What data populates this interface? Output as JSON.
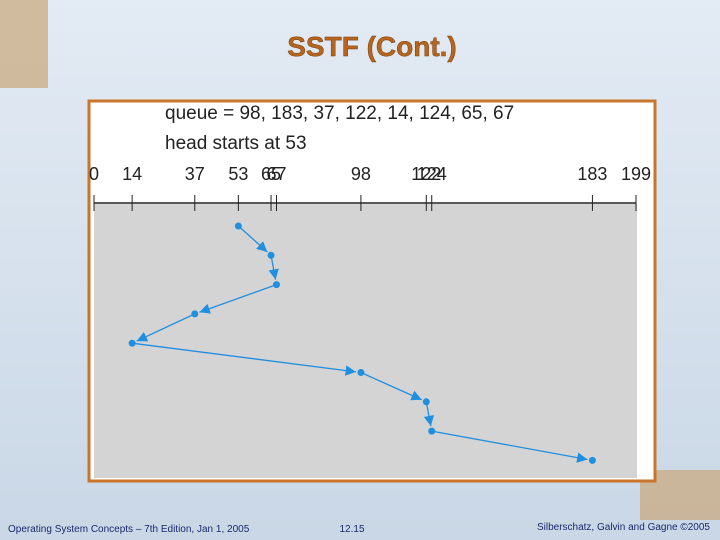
{
  "header": {
    "title": "SSTF (Cont.)"
  },
  "diagram": {
    "queue_text": "queue = 98, 183, 37, 122, 14, 124, 65, 67",
    "head_text": "head starts at 53",
    "scale": {
      "min": 0,
      "max": 199,
      "ticks": [
        0,
        14,
        37,
        53,
        65,
        67,
        98,
        122,
        124,
        183,
        199
      ]
    },
    "sequence": [
      53,
      65,
      67,
      37,
      14,
      98,
      122,
      124,
      183
    ]
  },
  "footer": {
    "left": "Operating System Concepts – 7th Edition, Jan 1, 2005",
    "center": "12.15",
    "right": "Silberschatz, Galvin and Gagne ©2005"
  }
}
